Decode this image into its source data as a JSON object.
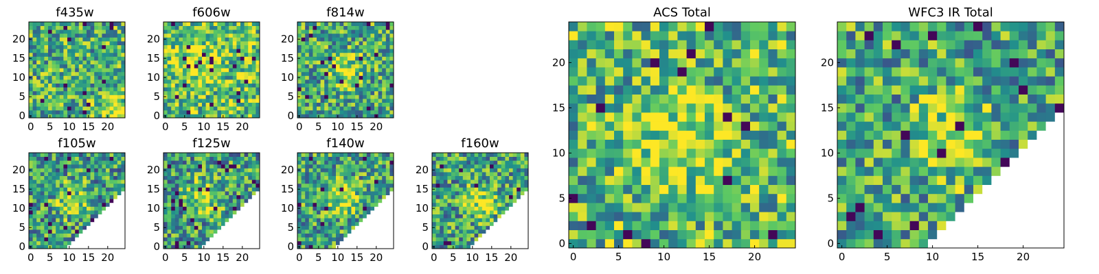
{
  "chart_data": {
    "type": "heatmap",
    "colormap": "viridis",
    "colorscale_low": "#440154",
    "colorscale_high": "#fde725",
    "missing_color": "#ffffff",
    "missing_region": "lower-right triangle in WFC3 IR panels",
    "panels": [
      {
        "id": "f435w",
        "title": "f435w",
        "grid": [
          25,
          25
        ],
        "xlim": [
          0,
          24
        ],
        "ylim": [
          0,
          24
        ],
        "xticks": [
          "0",
          "5",
          "10",
          "15",
          "20"
        ],
        "yticks": [
          "0",
          "5",
          "10",
          "15",
          "20"
        ],
        "mean_level": 0.62,
        "bright_region": [
          22,
          2
        ],
        "missing_cells": false
      },
      {
        "id": "f606w",
        "title": "f606w",
        "grid": [
          25,
          25
        ],
        "xlim": [
          0,
          24
        ],
        "ylim": [
          0,
          24
        ],
        "xticks": [
          "0",
          "5",
          "10",
          "15",
          "20"
        ],
        "yticks": [
          "0",
          "5",
          "10",
          "15",
          "20"
        ],
        "mean_level": 0.72,
        "bright_region": [
          8,
          14
        ],
        "missing_cells": false
      },
      {
        "id": "f814w",
        "title": "f814w",
        "grid": [
          25,
          25
        ],
        "xlim": [
          0,
          24
        ],
        "ylim": [
          0,
          24
        ],
        "xticks": [
          "0",
          "5",
          "10",
          "15",
          "20"
        ],
        "yticks": [
          "0",
          "5",
          "10",
          "15",
          "20"
        ],
        "mean_level": 0.6,
        "bright_region": [
          12,
          12
        ],
        "missing_cells": false
      },
      {
        "id": "f105w",
        "title": "f105w",
        "grid": [
          25,
          25
        ],
        "xlim": [
          0,
          24
        ],
        "ylim": [
          0,
          24
        ],
        "xticks": [
          "0",
          "5",
          "10",
          "15",
          "20"
        ],
        "yticks": [
          "0",
          "5",
          "10",
          "15",
          "20"
        ],
        "mean_level": 0.55,
        "bright_region": [
          11,
          12
        ],
        "missing_cells": true
      },
      {
        "id": "f125w",
        "title": "f125w",
        "grid": [
          25,
          25
        ],
        "xlim": [
          0,
          24
        ],
        "ylim": [
          0,
          24
        ],
        "xticks": [
          "0",
          "5",
          "10",
          "15",
          "20"
        ],
        "yticks": [
          "0",
          "5",
          "10",
          "15",
          "20"
        ],
        "mean_level": 0.56,
        "bright_region": [
          10,
          13
        ],
        "missing_cells": true
      },
      {
        "id": "f140w",
        "title": "f140w",
        "grid": [
          25,
          25
        ],
        "xlim": [
          0,
          24
        ],
        "ylim": [
          0,
          24
        ],
        "xticks": [
          "0",
          "5",
          "10",
          "15",
          "20"
        ],
        "yticks": [
          "0",
          "5",
          "10",
          "15",
          "20"
        ],
        "mean_level": 0.58,
        "bright_region": [
          11,
          13
        ],
        "missing_cells": true
      },
      {
        "id": "f160w",
        "title": "f160w",
        "grid": [
          25,
          25
        ],
        "xlim": [
          0,
          24
        ],
        "ylim": [
          0,
          24
        ],
        "xticks": [
          "0",
          "5",
          "10",
          "15",
          "20"
        ],
        "yticks": [
          "0",
          "5",
          "10",
          "15",
          "20"
        ],
        "mean_level": 0.57,
        "bright_region": [
          12,
          12
        ],
        "missing_cells": true
      },
      {
        "id": "acs-total",
        "title": "ACS Total",
        "grid": [
          25,
          25
        ],
        "xlim": [
          0,
          24
        ],
        "ylim": [
          0,
          24
        ],
        "xticks": [
          "0",
          "5",
          "10",
          "15",
          "20"
        ],
        "yticks": [
          "0",
          "5",
          "10",
          "15",
          "20"
        ],
        "mean_level": 0.66,
        "bright_region": [
          12,
          11
        ],
        "missing_cells": false
      },
      {
        "id": "wfc3-ir-total",
        "title": "WFC3 IR Total",
        "grid": [
          25,
          25
        ],
        "xlim": [
          0,
          24
        ],
        "ylim": [
          0,
          24
        ],
        "xticks": [
          "0",
          "5",
          "10",
          "15",
          "20"
        ],
        "yticks": [
          "0",
          "5",
          "10",
          "15",
          "20"
        ],
        "mean_level": 0.6,
        "bright_region": [
          12,
          12
        ],
        "missing_cells": true
      }
    ]
  }
}
